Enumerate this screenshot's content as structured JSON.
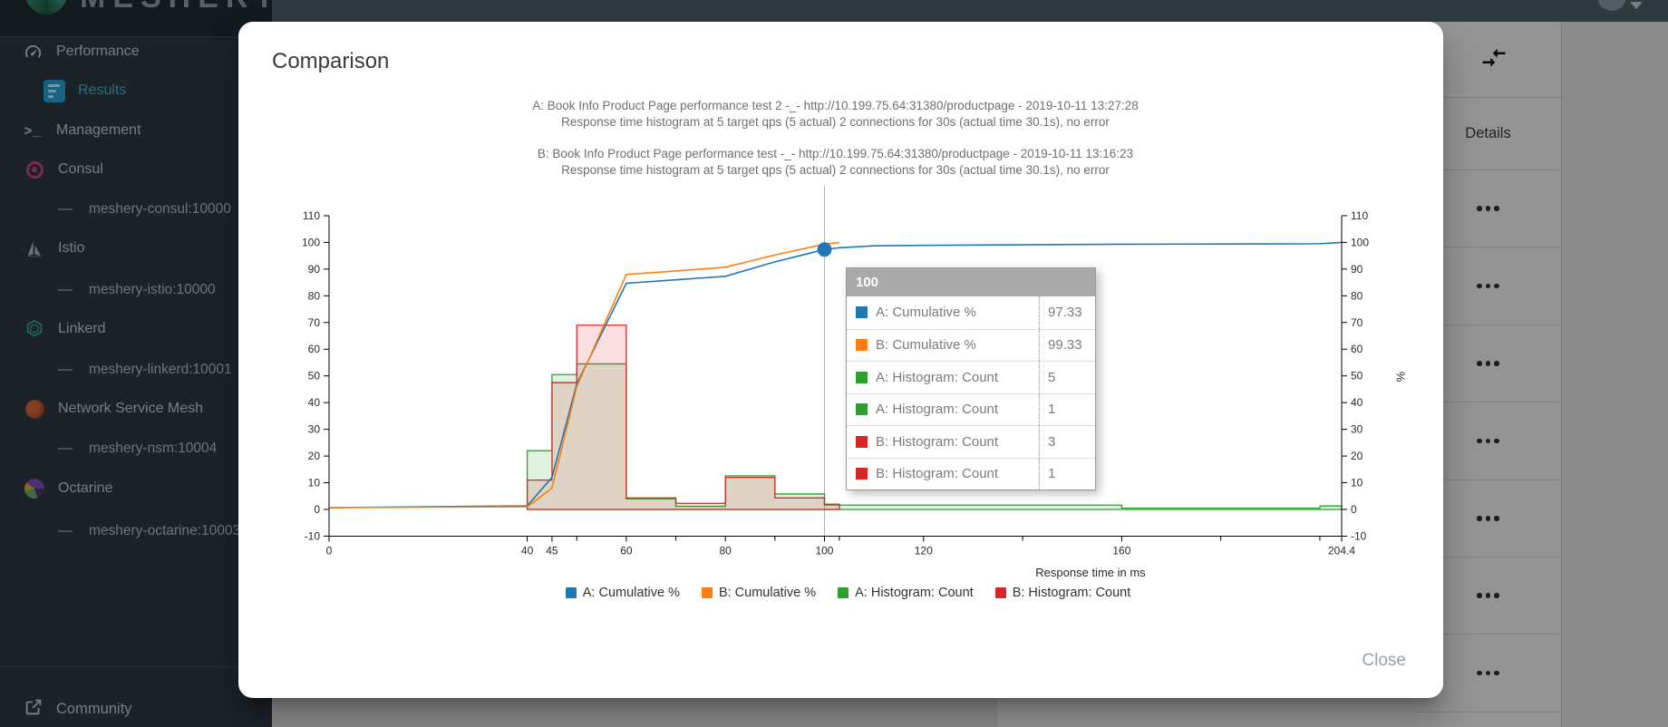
{
  "header": {
    "logo_text": "MESHERY"
  },
  "sidebar": {
    "items": [
      {
        "id": "performance",
        "label": "Performance",
        "icon": "gauge-icon",
        "level": "main",
        "selected": false
      },
      {
        "id": "results",
        "label": "Results",
        "icon": "results-icon",
        "level": "child",
        "selected": true
      },
      {
        "id": "management",
        "label": "Management",
        "icon": "terminal-icon",
        "level": "main",
        "selected": false
      },
      {
        "id": "consul",
        "label": "Consul",
        "icon": "consul-icon",
        "level": "adapter",
        "selected": false
      },
      {
        "id": "meshery-consul",
        "label": "meshery-consul:10000",
        "icon": "dash",
        "level": "sub",
        "selected": false
      },
      {
        "id": "istio",
        "label": "Istio",
        "icon": "istio-icon",
        "level": "adapter",
        "selected": false
      },
      {
        "id": "meshery-istio",
        "label": "meshery-istio:10000",
        "icon": "dash",
        "level": "sub",
        "selected": false
      },
      {
        "id": "linkerd",
        "label": "Linkerd",
        "icon": "linkerd-icon",
        "level": "adapter",
        "selected": false
      },
      {
        "id": "meshery-linkerd",
        "label": "meshery-linkerd:10001",
        "icon": "dash",
        "level": "sub",
        "selected": false
      },
      {
        "id": "nsm",
        "label": "Network Service Mesh",
        "icon": "nsm-icon",
        "level": "adapter",
        "selected": false
      },
      {
        "id": "meshery-nsm",
        "label": "meshery-nsm:10004",
        "icon": "dash",
        "level": "sub",
        "selected": false
      },
      {
        "id": "octarine",
        "label": "Octarine",
        "icon": "octarine-icon",
        "level": "adapter",
        "selected": false
      },
      {
        "id": "meshery-octarine",
        "label": "meshery-octarine:10003",
        "icon": "dash",
        "level": "sub",
        "selected": false
      }
    ],
    "community_label": "Community"
  },
  "content": {
    "details_header": "Details",
    "row_count": 7
  },
  "modal": {
    "title": "Comparison",
    "close_label": "Close"
  },
  "chart_data": {
    "type": "composite",
    "title_a": [
      "A: Book Info Product Page performance test 2 -_- http://10.199.75.64:31380/productpage - 2019-10-11 13:27:28",
      "Response time histogram at 5 target qps (5 actual) 2 connections for 30s (actual time 30.1s), no error"
    ],
    "title_b": [
      "B: Book Info Product Page performance test -_- http://10.199.75.64:31380/productpage - 2019-10-11 13:16:23",
      "Response time histogram at 5 target qps (5 actual) 2 connections for 30s (actual time 30.1s), no error"
    ],
    "xlabel": "Response time in ms",
    "ylabel_right": "%",
    "xlim": [
      0,
      204.4
    ],
    "ylim": [
      -10,
      110
    ],
    "x_ticks_labeled": [
      0,
      40,
      45,
      60,
      80,
      100,
      120,
      160,
      204.4
    ],
    "x_ticks_minor": [
      50,
      70,
      90,
      103,
      140,
      180,
      200
    ],
    "y_ticks": [
      -10,
      0,
      10,
      20,
      30,
      40,
      50,
      60,
      70,
      80,
      90,
      100,
      110
    ],
    "series": [
      {
        "name": "A: Cumulative %",
        "type": "line",
        "color": "#1f77b4",
        "points": [
          [
            0,
            0.67
          ],
          [
            40,
            1.33
          ],
          [
            45,
            12
          ],
          [
            50,
            47
          ],
          [
            60,
            84.7
          ],
          [
            70,
            86
          ],
          [
            80,
            87.3
          ],
          [
            90,
            92.7
          ],
          [
            100,
            97.33
          ],
          [
            103,
            98
          ],
          [
            110,
            98.7
          ],
          [
            120,
            98.9
          ],
          [
            160,
            99.3
          ],
          [
            200,
            99.5
          ],
          [
            204.4,
            100
          ]
        ]
      },
      {
        "name": "B: Cumulative %",
        "type": "line",
        "color": "#ff7f0e",
        "points": [
          [
            0,
            0.67
          ],
          [
            40,
            1
          ],
          [
            45,
            8
          ],
          [
            50,
            46
          ],
          [
            60,
            88
          ],
          [
            70,
            89.3
          ],
          [
            80,
            90.7
          ],
          [
            90,
            95.3
          ],
          [
            100,
            99.33
          ],
          [
            103,
            100
          ]
        ]
      },
      {
        "name": "A: Histogram: Count",
        "type": "step-area",
        "color": "#2ca02c",
        "steps": [
          [
            40,
            45,
            22
          ],
          [
            45,
            50,
            50.5
          ],
          [
            50,
            60,
            54.5
          ],
          [
            60,
            70,
            4
          ],
          [
            70,
            80,
            1.2
          ],
          [
            80,
            90,
            12.6
          ],
          [
            90,
            100,
            5.8
          ],
          [
            100,
            103,
            2
          ],
          [
            103,
            160,
            1.6
          ],
          [
            160,
            200,
            0.5
          ],
          [
            200,
            204.4,
            1.3
          ]
        ]
      },
      {
        "name": "B: Histogram: Count",
        "type": "step-area",
        "color": "#d62728",
        "steps": [
          [
            40,
            45,
            11
          ],
          [
            45,
            50,
            47.5
          ],
          [
            50,
            60,
            69
          ],
          [
            60,
            70,
            4.3
          ],
          [
            70,
            80,
            2.3
          ],
          [
            80,
            90,
            12
          ],
          [
            90,
            100,
            4.3
          ],
          [
            100,
            103,
            1.7
          ]
        ]
      }
    ],
    "focus": {
      "x": 100,
      "dot_value": 97.33,
      "dot_color": "#1f77b4"
    },
    "tooltip": {
      "title": "100",
      "rows": [
        {
          "color": "#1f77b4",
          "label": "A: Cumulative %",
          "value": "97.33"
        },
        {
          "color": "#ff7f0e",
          "label": "B: Cumulative %",
          "value": "99.33"
        },
        {
          "color": "#2ca02c",
          "label": "A: Histogram: Count",
          "value": "5"
        },
        {
          "color": "#2ca02c",
          "label": "A: Histogram: Count",
          "value": "1"
        },
        {
          "color": "#d62728",
          "label": "B: Histogram: Count",
          "value": "3"
        },
        {
          "color": "#d62728",
          "label": "B: Histogram: Count",
          "value": "1"
        }
      ]
    },
    "legend": [
      {
        "label": "A: Cumulative %",
        "color": "#1f77b4"
      },
      {
        "label": "B: Cumulative %",
        "color": "#ff7f0e"
      },
      {
        "label": "A: Histogram: Count",
        "color": "#2ca02c"
      },
      {
        "label": "B: Histogram: Count",
        "color": "#d62728"
      }
    ]
  }
}
